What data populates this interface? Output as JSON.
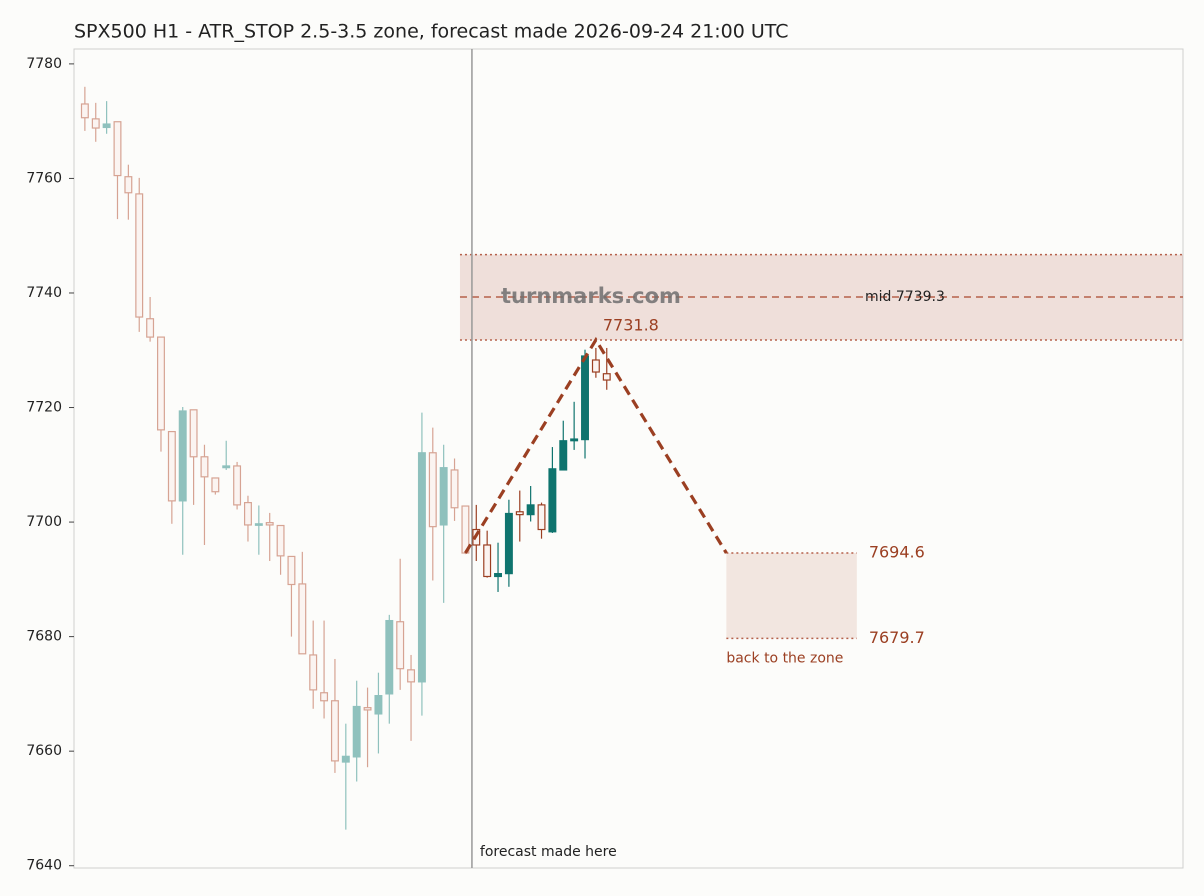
{
  "chart_data": {
    "type": "candlestick",
    "title": "SPX500 H1 - ATR_STOP 2.5-3.5 zone, forecast made 2026-09-24 21:00 UTC",
    "watermark": "turnmarks.com",
    "xlim": [
      -1,
      101
    ],
    "ylim": [
      7639.6,
      7782.6
    ],
    "yticks": [
      7640,
      7660,
      7680,
      7700,
      7720,
      7740,
      7760,
      7780
    ],
    "history_candles": {
      "up_color": "#8fc1bd",
      "down_color": "#d6a393",
      "x": [
        0,
        1,
        2,
        3,
        4,
        5,
        6,
        7,
        8,
        9,
        10,
        11,
        12,
        13,
        14,
        15,
        16,
        17,
        18,
        19,
        20,
        21,
        22,
        23,
        24,
        25,
        26,
        27,
        28,
        29,
        30,
        31,
        32,
        33,
        34,
        35
      ],
      "open": [
        7773.0,
        7770.4,
        7768.9,
        7769.9,
        7760.3,
        7757.3,
        7735.5,
        7732.3,
        7715.8,
        7703.7,
        7719.6,
        7711.4,
        7707.7,
        7709.5,
        7709.8,
        7703.4,
        7699.5,
        7699.9,
        7699.4,
        7694.0,
        7689.2,
        7676.8,
        7670.2,
        7668.8,
        7658.1,
        7659.0,
        7667.6,
        7666.5,
        7670.0,
        7682.6,
        7674.2,
        7672.1,
        7712.1,
        7699.5,
        7709.1,
        7702.8
      ],
      "high": [
        7776.0,
        7773.2,
        7773.5,
        7769.9,
        7762.4,
        7760.1,
        7739.3,
        7732.3,
        7715.8,
        7720.1,
        7719.6,
        7713.5,
        7707.7,
        7714.2,
        7710.5,
        7704.6,
        7702.9,
        7701.6,
        7699.4,
        7694.0,
        7694.8,
        7682.8,
        7682.8,
        7676.1,
        7664.8,
        7672.3,
        7671.1,
        7673.7,
        7683.8,
        7693.6,
        7676.8,
        7719.1,
        7716.5,
        7713.5,
        7711.1,
        7702.8
      ],
      "low": [
        7768.3,
        7766.4,
        7767.8,
        7752.9,
        7752.8,
        7733.2,
        7731.5,
        7712.3,
        7699.7,
        7694.3,
        7703.0,
        7696.0,
        7704.8,
        7709.1,
        7702.2,
        7696.6,
        7694.3,
        7693.2,
        7690.8,
        7680.0,
        7677.0,
        7667.4,
        7665.7,
        7656.2,
        7646.3,
        7654.7,
        7657.2,
        7659.6,
        7664.8,
        7670.7,
        7661.8,
        7666.2,
        7689.8,
        7685.9,
        7700.2,
        7694.4
      ],
      "close": [
        7770.6,
        7768.8,
        7769.5,
        7760.5,
        7757.5,
        7735.8,
        7732.3,
        7716.1,
        7703.7,
        7719.4,
        7711.4,
        7707.9,
        7705.3,
        7709.8,
        7703.0,
        7699.5,
        7699.7,
        7699.5,
        7694.1,
        7689.1,
        7677.0,
        7670.7,
        7668.8,
        7658.3,
        7659.1,
        7667.8,
        7667.2,
        7669.7,
        7682.8,
        7674.4,
        7672.1,
        7712.1,
        7699.2,
        7709.5,
        7702.5,
        7694.6
      ]
    },
    "recent_candles": {
      "up_color": "#0f746e",
      "down_color": "#9b3f22",
      "x": [
        36,
        37,
        38,
        39,
        40,
        41,
        42,
        43,
        44,
        45,
        46,
        47,
        48
      ],
      "open": [
        7698.7,
        7696.0,
        7690.5,
        7691.0,
        7701.8,
        7701.3,
        7703.0,
        7698.3,
        7709.1,
        7714.2,
        7714.4,
        7728.3,
        7725.9
      ],
      "high": [
        7703.0,
        7698.5,
        7696.4,
        7703.9,
        7705.5,
        7706.3,
        7703.4,
        7713.1,
        7717.7,
        7721.0,
        7730.1,
        7730.4,
        7730.4
      ],
      "low": [
        7693.2,
        7690.3,
        7687.8,
        7688.7,
        7696.6,
        7700.1,
        7697.1,
        7698.1,
        7709.1,
        7712.6,
        7711.1,
        7725.2,
        7723.1
      ],
      "close": [
        7696.0,
        7690.5,
        7691.0,
        7701.5,
        7701.3,
        7703.0,
        7698.7,
        7709.3,
        7714.2,
        7714.5,
        7729.0,
        7726.2,
        7724.8
      ]
    },
    "zone": {
      "top": 7746.7,
      "bottom": 7731.8,
      "mid": 7739.3,
      "mid_label": "mid 7739.3",
      "x_start": 34.5,
      "color": "#b5604a"
    },
    "forecast_marker": {
      "x": 35.6,
      "label": "forecast made here"
    },
    "forecast_path": {
      "color": "#9b3f22",
      "x": [
        35,
        47,
        59
      ],
      "y": [
        7694.6,
        7731.8,
        7694.6
      ]
    },
    "target": {
      "top": 7694.6,
      "bottom": 7679.7,
      "x": [
        59,
        71
      ],
      "label": "back to the zone"
    }
  }
}
